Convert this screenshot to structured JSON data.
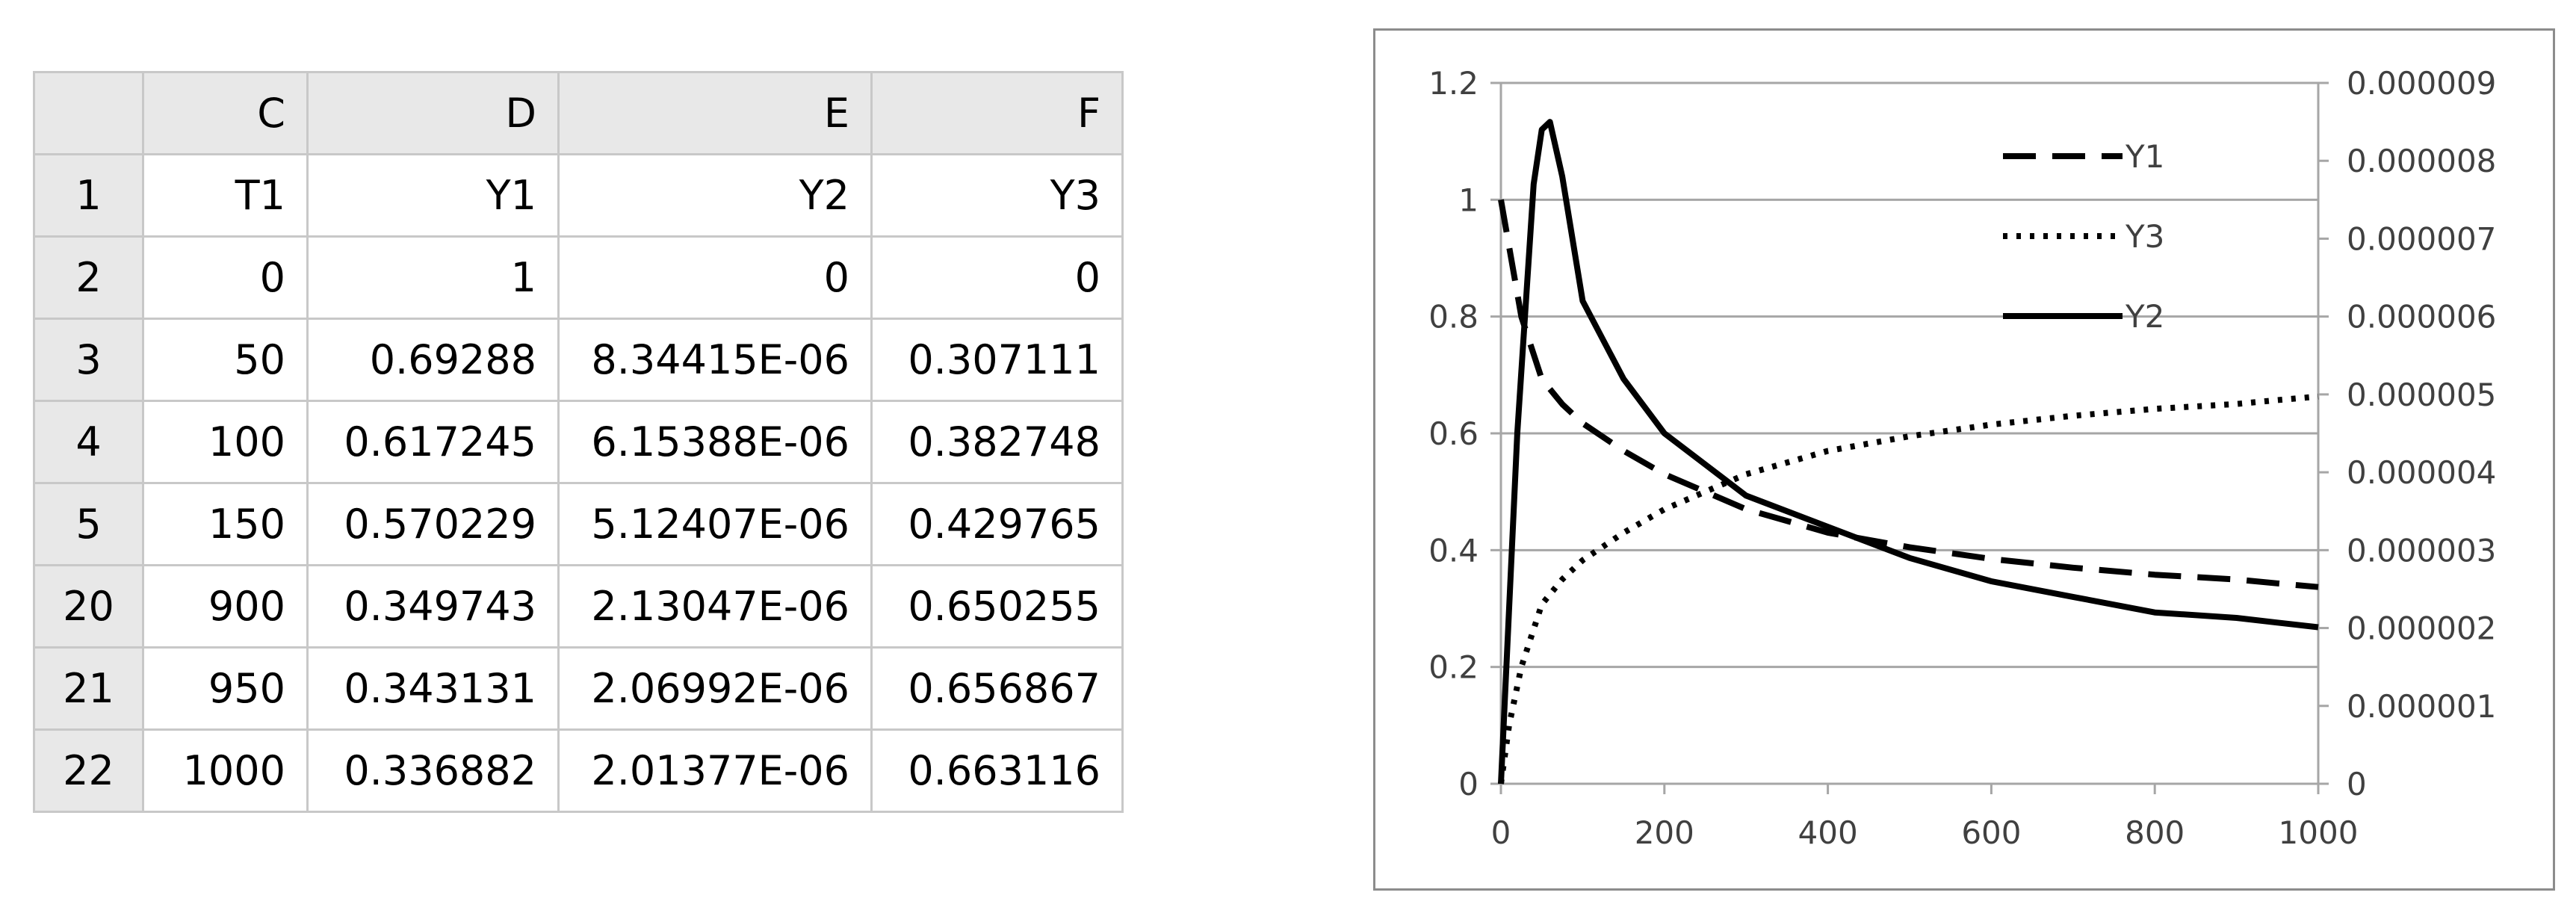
{
  "sheet": {
    "col_headers": [
      "",
      "C",
      "D",
      "E",
      "F"
    ],
    "rows": [
      {
        "num": "1",
        "cells": [
          "T1",
          "Y1",
          "Y2",
          "Y3"
        ]
      },
      {
        "num": "2",
        "cells": [
          "0",
          "1",
          "0",
          "0"
        ]
      },
      {
        "num": "3",
        "cells": [
          "50",
          "0.69288",
          "8.34415E-06",
          "0.307111"
        ]
      },
      {
        "num": "4",
        "cells": [
          "100",
          "0.617245",
          "6.15388E-06",
          "0.382748"
        ]
      },
      {
        "num": "5",
        "cells": [
          "150",
          "0.570229",
          "5.12407E-06",
          "0.429765"
        ]
      },
      {
        "num": "20",
        "cells": [
          "900",
          "0.349743",
          "2.13047E-06",
          "0.650255"
        ]
      },
      {
        "num": "21",
        "cells": [
          "950",
          "0.343131",
          "2.06992E-06",
          "0.656867"
        ]
      },
      {
        "num": "22",
        "cells": [
          "1000",
          "0.336882",
          "2.01377E-06",
          "0.663116"
        ]
      }
    ]
  },
  "chart_data": {
    "type": "line",
    "title": "",
    "xlabel": "",
    "ylabel": "",
    "xlim": [
      0,
      1000
    ],
    "ylim_left": [
      0,
      1.2
    ],
    "ylim_right": [
      0,
      9e-06
    ],
    "x_ticks": [
      "0",
      "200",
      "400",
      "600",
      "800",
      "1000"
    ],
    "y_left_ticks": [
      "0",
      "0.2",
      "0.4",
      "0.6",
      "0.8",
      "1",
      "1.2"
    ],
    "y_right_ticks": [
      "0",
      "0.000001",
      "0.000002",
      "0.000003",
      "0.000004",
      "0.000005",
      "0.000006",
      "0.000007",
      "0.000008",
      "0.000009"
    ],
    "grid": "horizontal",
    "legend_position": "top-right",
    "series": [
      {
        "name": "Y1",
        "axis": "left",
        "style": "dashed",
        "x": [
          0,
          25,
          50,
          75,
          100,
          150,
          200,
          300,
          400,
          500,
          600,
          700,
          800,
          900,
          950,
          1000
        ],
        "values": [
          1,
          0.8,
          0.69288,
          0.65,
          0.617245,
          0.570229,
          0.53,
          0.47,
          0.43,
          0.405,
          0.385,
          0.37,
          0.358,
          0.349743,
          0.343131,
          0.336882
        ]
      },
      {
        "name": "Y3",
        "axis": "left",
        "style": "dotted",
        "x": [
          0,
          10,
          25,
          50,
          75,
          100,
          150,
          200,
          300,
          400,
          500,
          600,
          700,
          800,
          900,
          950,
          1000
        ],
        "values": [
          0,
          0.1,
          0.2,
          0.307111,
          0.35,
          0.382748,
          0.429765,
          0.47,
          0.53,
          0.57,
          0.595,
          0.615,
          0.63,
          0.642,
          0.650255,
          0.656867,
          0.663116
        ]
      },
      {
        "name": "Y2",
        "axis": "right",
        "style": "solid",
        "x": [
          0,
          20,
          40,
          50,
          60,
          75,
          100,
          150,
          200,
          300,
          400,
          500,
          600,
          700,
          800,
          900,
          950,
          1000
        ],
        "values": [
          0,
          4.5e-06,
          7.7e-06,
          8.4e-06,
          8.5e-06,
          7.8e-06,
          6.2e-06,
          5.2e-06,
          4.5e-06,
          3.7e-06,
          3.3e-06,
          2.9e-06,
          2.6e-06,
          2.4e-06,
          2.2e-06,
          2.13e-06,
          2.07e-06,
          2.01e-06
        ]
      }
    ]
  }
}
